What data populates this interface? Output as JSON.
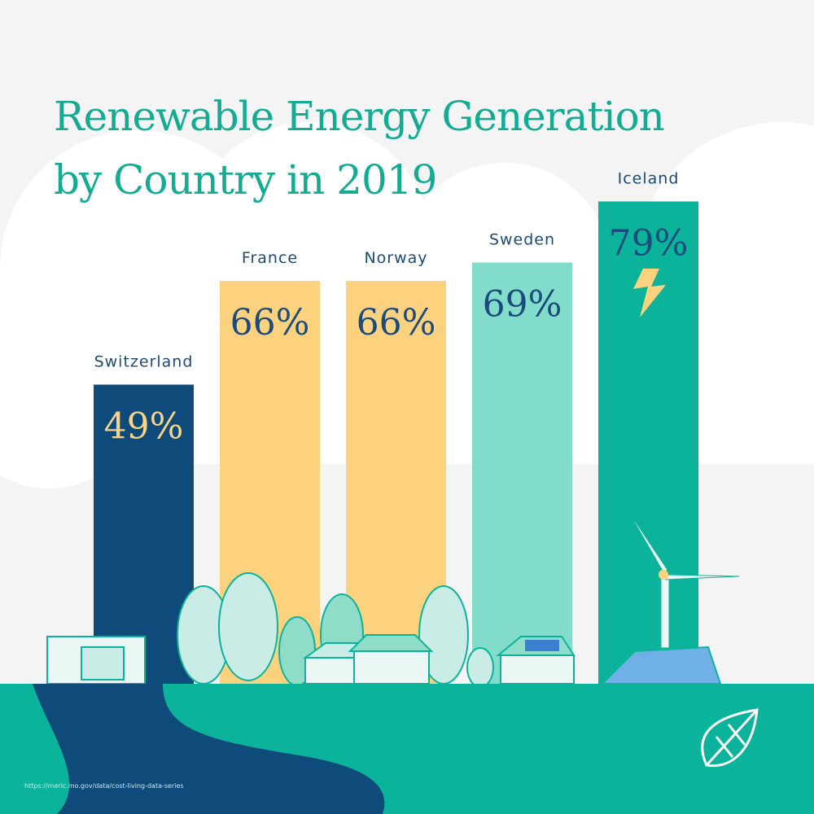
{
  "chart_data": {
    "type": "bar",
    "title": "Renewable Energy Generation by Country in 2019",
    "categories": [
      "Switzerland",
      "France",
      "Norway",
      "Sweden",
      "Iceland"
    ],
    "values": [
      49,
      66,
      66,
      69,
      79
    ],
    "value_labels": [
      "49%",
      "66%",
      "66%",
      "69%",
      "79%"
    ],
    "colors": [
      "#0e4a7a",
      "#fcd27e",
      "#fcd27e",
      "#82dccc",
      "#0cb39b"
    ],
    "source": "https://meric.mo.gov/data/cost-living-data-series"
  }
}
